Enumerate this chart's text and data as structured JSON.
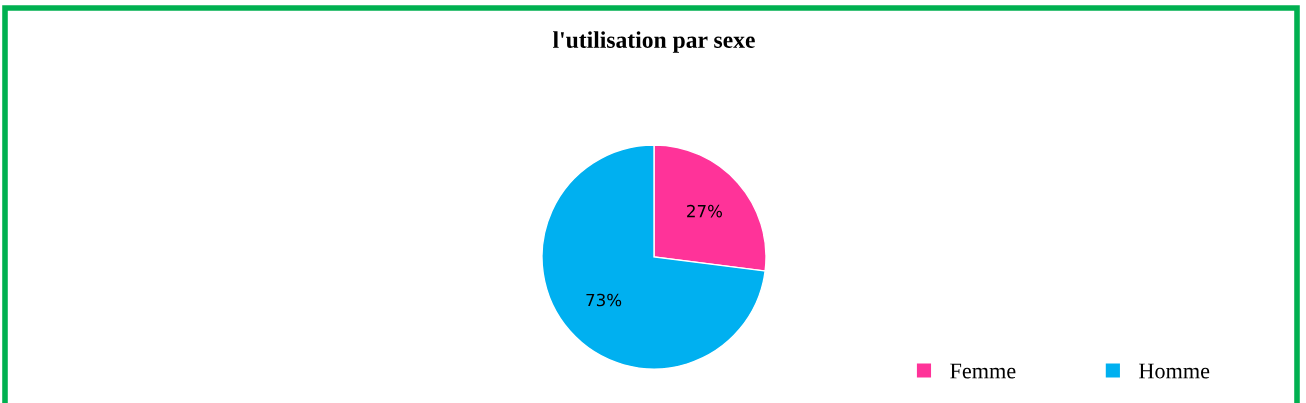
{
  "chart_data": {
    "type": "pie",
    "title": "l'utilisation par sexe",
    "categories": [
      "Femme",
      "Homme"
    ],
    "values": [
      27,
      73
    ],
    "colors": [
      "#ff3399",
      "#00b0f0"
    ],
    "value_labels": [
      "27%",
      "73%"
    ],
    "legend": "bottom right"
  }
}
